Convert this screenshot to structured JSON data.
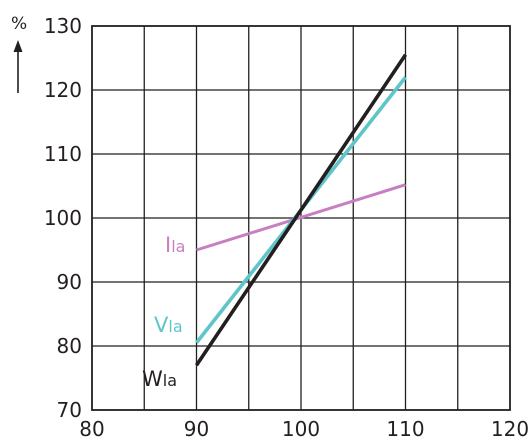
{
  "chart_data": {
    "type": "line",
    "xlim": [
      80,
      120
    ],
    "ylim": [
      70,
      130
    ],
    "x_ticks": [
      80,
      90,
      100,
      110,
      120
    ],
    "y_ticks": [
      70,
      80,
      90,
      100,
      110,
      120,
      130
    ],
    "y_unit": "%",
    "grid": true,
    "series": [
      {
        "key": "I",
        "main": "I",
        "sub": "la",
        "color": "#c77fc1",
        "x": [
          90,
          110
        ],
        "y": [
          95,
          105.2
        ]
      },
      {
        "key": "V",
        "main": "V",
        "sub": "la",
        "color": "#5ec5c9",
        "x": [
          90,
          110
        ],
        "y": [
          80.5,
          122
        ]
      },
      {
        "key": "W",
        "main": "W",
        "sub": "la",
        "color": "#231f20",
        "x": [
          90,
          110
        ],
        "y": [
          77,
          125.5
        ]
      }
    ]
  }
}
